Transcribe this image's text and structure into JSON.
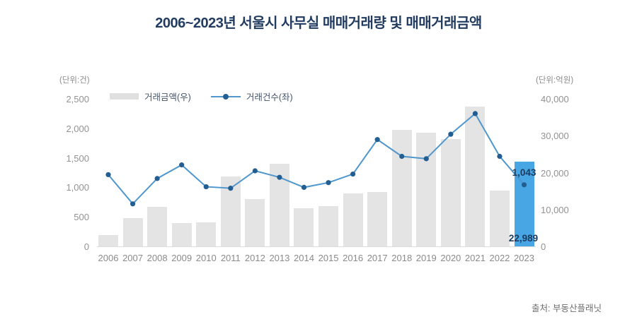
{
  "title": "2006~2023년 서울시 사무실 매매거래량 및 매매거래금액",
  "source": "출처: 부동산플래닛",
  "colors": {
    "title_navy": "#223c61",
    "bar_gray": "#e4e4e4",
    "bar_highlight_blue": "#47a6e3",
    "line_blue": "#4f97cd",
    "dot_blue": "#235e92",
    "annotation_navy": "#1c3a5e",
    "axis_text_gray": "#929292"
  },
  "chart_data": {
    "type": "bar",
    "subtype": "combo-bar-line-dual-axis",
    "categories": [
      "2006",
      "2007",
      "2008",
      "2009",
      "2010",
      "2011",
      "2012",
      "2013",
      "2014",
      "2015",
      "2016",
      "2017",
      "2018",
      "2019",
      "2020",
      "2021",
      "2022",
      "2023"
    ],
    "series": [
      {
        "name": "거래금액(우)",
        "type": "bar",
        "axis": "right",
        "values": [
          3100,
          7700,
          10700,
          6300,
          6500,
          19000,
          12800,
          22400,
          10300,
          10900,
          14300,
          14700,
          31500,
          30800,
          29100,
          37800,
          15100,
          22989
        ],
        "color": "#e4e4e4",
        "highlight_index": 17,
        "highlight_color": "#47a6e3"
      },
      {
        "name": "거래건수(좌)",
        "type": "line",
        "axis": "left",
        "values": [
          1215,
          720,
          1150,
          1380,
          1010,
          985,
          1280,
          1170,
          1000,
          1080,
          1225,
          1810,
          1525,
          1485,
          1900,
          2250,
          1525,
          1043
        ],
        "color": "#4f97cd",
        "dot_color": "#235e92"
      }
    ],
    "left_axis": {
      "label": "(단위:건)",
      "min": 0,
      "max": 2500,
      "ticks": [
        "0",
        "500",
        "1,000",
        "1,500",
        "2,000",
        "2,500"
      ]
    },
    "right_axis": {
      "label": "(단위:억원)",
      "min": 0,
      "max": 40000,
      "ticks": [
        "0",
        "10,000",
        "20,000",
        "30,000",
        "40,000"
      ]
    },
    "annotations": [
      {
        "text": "1,043",
        "series": "line",
        "category": "2023"
      },
      {
        "text": "22,989",
        "series": "bar",
        "category": "2023"
      }
    ],
    "grid": false,
    "legend_position": "top-left"
  }
}
